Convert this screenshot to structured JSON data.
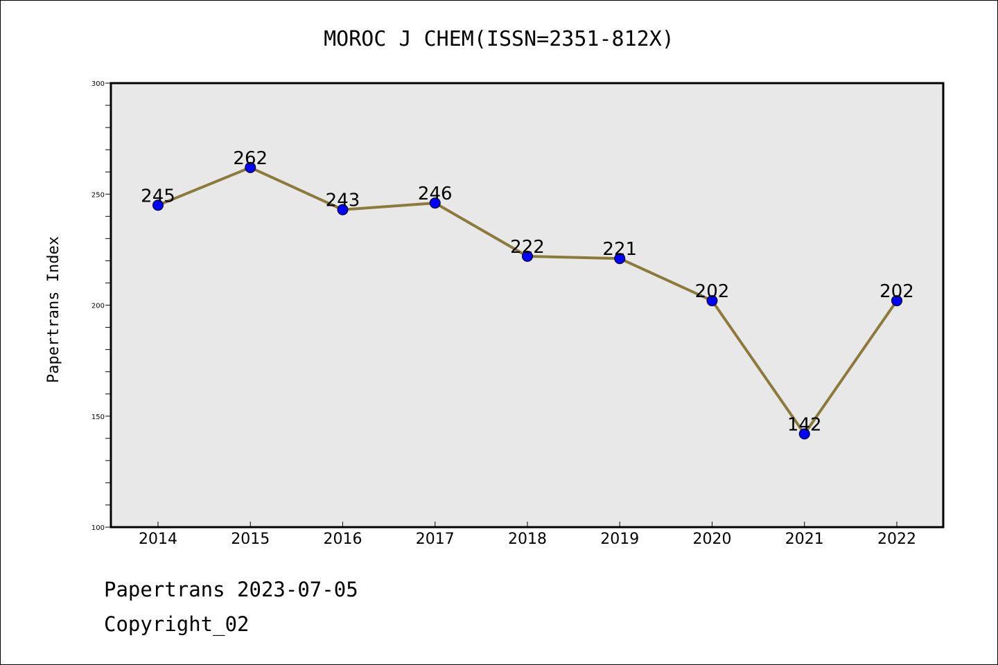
{
  "chart_data": {
    "type": "line",
    "title": "MOROC J CHEM(ISSN=2351-812X)",
    "xlabel": "",
    "ylabel": "Papertrans Index",
    "ylim": [
      100,
      300
    ],
    "yticks": [
      100,
      150,
      200,
      250,
      300
    ],
    "grid": false,
    "categories": [
      "2014",
      "2015",
      "2016",
      "2017",
      "2018",
      "2019",
      "2020",
      "2021",
      "2022"
    ],
    "series": [
      {
        "values": [
          245,
          262,
          243,
          246,
          222,
          221,
          202,
          142,
          202
        ]
      }
    ],
    "colors": {
      "line": "#8b7a3a",
      "marker": "#0000ff",
      "plot_background": "#e8e8e8"
    }
  },
  "footer": {
    "line1": "Papertrans 2023-07-05",
    "line2": "Copyright_02"
  }
}
